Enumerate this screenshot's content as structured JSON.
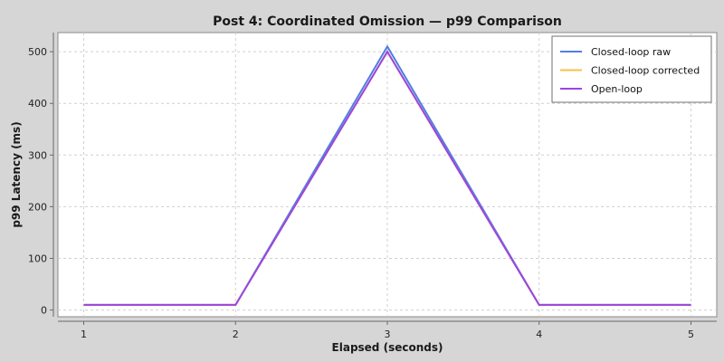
{
  "chart_data": {
    "type": "line",
    "title": "Post 4: Coordinated Omission — p99 Comparison",
    "xlabel": "Elapsed (seconds)",
    "ylabel": "p99 Latency (ms)",
    "x": [
      1,
      2,
      3,
      4,
      5
    ],
    "xticks": [
      1,
      2,
      3,
      4,
      5
    ],
    "yticks": [
      0,
      100,
      200,
      300,
      400,
      500
    ],
    "xlim": [
      0.83,
      5.17
    ],
    "ylim": [
      -13,
      537
    ],
    "grid": true,
    "legend_position": "top-right",
    "series": [
      {
        "name": "Closed-loop raw",
        "color": "#4f7fe0",
        "values": [
          10,
          10,
          510,
          10,
          10
        ]
      },
      {
        "name": "Closed-loop corrected",
        "color": "#f5c242",
        "values": [
          10,
          10,
          500,
          10,
          10
        ]
      },
      {
        "name": "Open-loop",
        "color": "#9b45e0",
        "values": [
          10,
          10,
          500,
          10,
          10
        ]
      }
    ]
  }
}
